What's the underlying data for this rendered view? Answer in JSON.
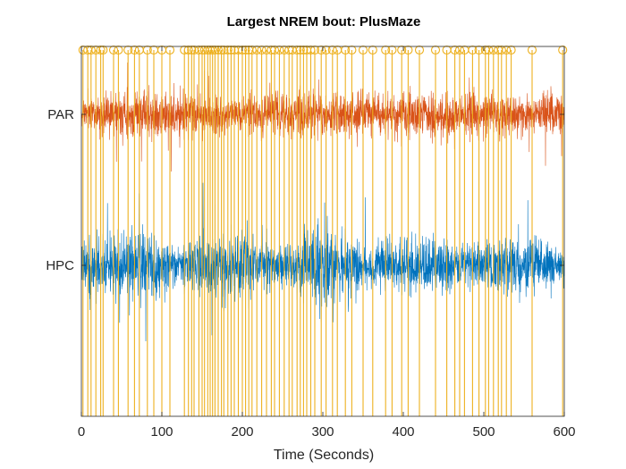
{
  "chart_data": {
    "type": "line",
    "title": "Largest NREM bout: PlusMaze",
    "xlabel": "Time (Seconds)",
    "ylabel": "",
    "xlim": [
      0,
      600
    ],
    "x_ticks": [
      "0",
      "100",
      "200",
      "300",
      "400",
      "500",
      "600"
    ],
    "y_ticks": [
      "HPC",
      "PAR"
    ],
    "grid": false,
    "series": [
      {
        "name": "PAR",
        "color": "#D95319",
        "baseline_label": "PAR",
        "approx_amplitude": 0.9
      },
      {
        "name": "HPC",
        "color": "#0072BD",
        "baseline_label": "HPC",
        "approx_amplitude": 1.2
      }
    ],
    "event_markers": {
      "color": "#EDB120",
      "marker": "open-circle",
      "times": [
        2,
        8,
        12,
        18,
        24,
        27,
        40,
        46,
        58,
        66,
        72,
        82,
        90,
        100,
        110,
        128,
        133,
        137,
        140,
        146,
        150,
        153,
        157,
        160,
        163,
        166,
        170,
        174,
        177,
        182,
        186,
        190,
        195,
        200,
        204,
        208,
        212,
        218,
        224,
        230,
        236,
        240,
        246,
        252,
        258,
        262,
        268,
        272,
        276,
        280,
        285,
        290,
        298,
        304,
        312,
        318,
        328,
        336,
        350,
        362,
        378,
        386,
        398,
        406,
        420,
        440,
        454,
        464,
        470,
        476,
        486,
        494,
        502,
        506,
        512,
        518,
        522,
        528,
        534,
        560,
        598
      ]
    }
  }
}
